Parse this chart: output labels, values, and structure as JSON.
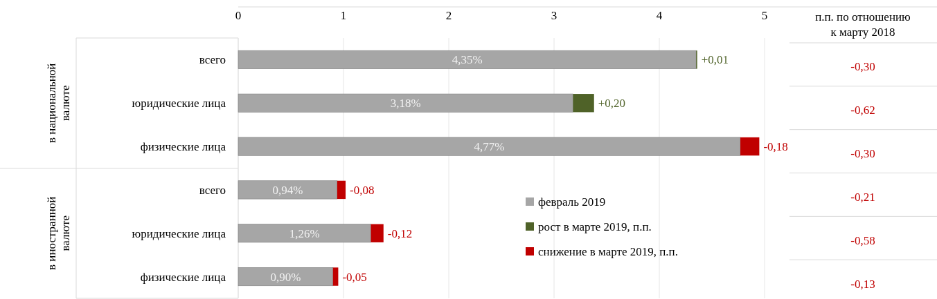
{
  "chart_data": {
    "type": "bar",
    "orientation": "horizontal",
    "stacked": true,
    "categories": [
      "всего",
      "юридические лица",
      "физические лица",
      "всего",
      "юридические лица",
      "физические лица"
    ],
    "series": [
      {
        "name": "февраль 2019",
        "color": "#a6a6a6",
        "values": [
          4.35,
          3.18,
          4.77,
          0.94,
          1.26,
          0.9
        ],
        "value_labels": [
          "4,35%",
          "3,18%",
          "4,77%",
          "0,94%",
          "1,26%",
          "0,90%"
        ]
      },
      {
        "name": "рост в марте 2019, п.п.",
        "color": "#4f6228",
        "values": [
          0.01,
          0.2,
          null,
          null,
          null,
          null
        ],
        "value_labels": [
          "+0,01",
          "+0,20",
          null,
          null,
          null,
          null
        ]
      },
      {
        "name": "снижение в марте 2019, п.п.",
        "color": "#c00000",
        "values": [
          null,
          null,
          -0.18,
          -0.08,
          -0.12,
          -0.05
        ],
        "base": [
          null,
          null,
          4.95,
          1.02,
          1.38,
          0.95
        ],
        "value_labels": [
          null,
          null,
          "-0,18",
          "-0,08",
          "-0,12",
          "-0,05"
        ]
      }
    ],
    "xlim": [
      0,
      5
    ],
    "xticks": [
      0,
      1,
      2,
      3,
      4,
      5
    ],
    "grid": "x",
    "legend": "bottom right",
    "annotations": [
      "в национальной валюте",
      "в иностранной валюте",
      "п.п. по отношению к марту 2018",
      "-0,30",
      "-0,62",
      "-0,30",
      "-0,21",
      "-0,58",
      "-0,13"
    ]
  }
}
